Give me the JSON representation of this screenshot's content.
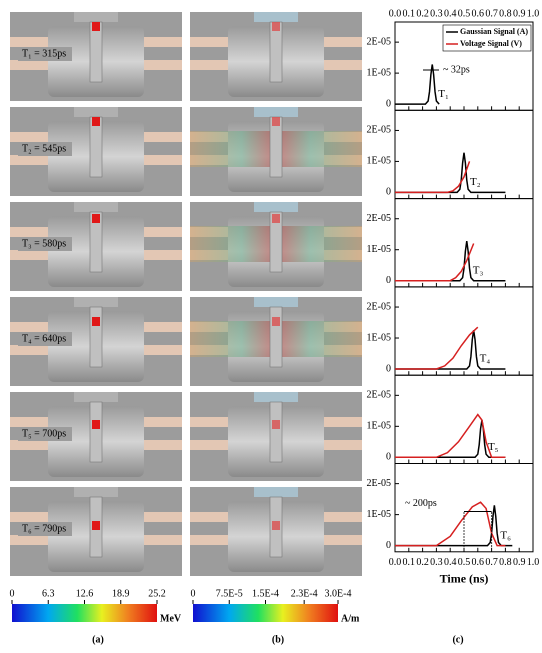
{
  "panel_a": {
    "label": "(a)",
    "rows": [
      "T₁ = 315ps",
      "T₂ = 545ps",
      "T₃ = 580ps",
      "T₄ = 640ps",
      "T₅ = 700ps",
      "T₆ = 790ps"
    ],
    "colorbar": {
      "lim": [
        0,
        25.2
      ],
      "ticks": [
        0,
        6.3,
        12.6,
        18.9,
        25.2
      ],
      "unit": "MeV"
    }
  },
  "panel_b": {
    "label": "(b)",
    "colorbar": {
      "lim": [
        0,
        0.0003
      ],
      "ticks": [
        0,
        {
          "value": 7.5e-05,
          "label": "7.5E-5"
        },
        {
          "value": 0.00015,
          "label": "1.5E-4"
        },
        {
          "value": 0.00023,
          "label": "2.3E-4"
        },
        {
          "value": 0.0003,
          "label": "3.0E-4"
        }
      ],
      "unit": "A/m"
    }
  },
  "panel_c": {
    "label": "(c)"
  },
  "chart_data": [
    {
      "type": "line",
      "xlim": [
        0,
        1
      ],
      "xticks": [
        {
          "value": 0,
          "label": "0.0"
        },
        0.1,
        0.2,
        0.3,
        0.4,
        0.5,
        0.6,
        0.7,
        0.8,
        0.9,
        {
          "value": 1,
          "label": "1.0"
        }
      ],
      "ylim": [
        -2e-06,
        2.65e-05
      ],
      "yticks": [
        0,
        {
          "value": 1e-05,
          "label": "1E-05"
        },
        {
          "value": 2e-05,
          "label": "2E-05"
        }
      ],
      "annotations": [
        "T₁",
        "~ 32ps"
      ],
      "series": [
        {
          "name": "Gaussian Signal (A)",
          "color": "#000000",
          "x": [
            0,
            0.22,
            0.24,
            0.25,
            0.26,
            0.27,
            0.28,
            0.29,
            0.3,
            0.32
          ],
          "values": [
            0,
            0,
            1e-06,
            4e-06,
            9.5e-06,
            1.28e-05,
            9.5e-06,
            4e-06,
            1e-06,
            0
          ]
        },
        {
          "name": "Voltage Signal (V)",
          "color": "#d62020",
          "x": [],
          "values": []
        }
      ]
    },
    {
      "type": "line",
      "xlim": [
        0,
        1
      ],
      "xticks": [
        0,
        0.1,
        0.2,
        0.3,
        0.4,
        0.5,
        0.6,
        0.7,
        0.8,
        0.9,
        1
      ],
      "ylim": [
        -2e-06,
        2.65e-05
      ],
      "yticks": [
        0,
        {
          "value": 1e-05,
          "label": "1E-05"
        },
        {
          "value": 2e-05,
          "label": "2E-05"
        }
      ],
      "annotations": [
        "T₂"
      ],
      "series": [
        {
          "color": "#000000",
          "x": [
            0,
            0.45,
            0.47,
            0.48,
            0.49,
            0.5,
            0.51,
            0.52,
            0.53,
            0.55,
            0.8
          ],
          "values": [
            0,
            0,
            1e-06,
            4e-06,
            9.5e-06,
            1.28e-05,
            9.5e-06,
            4e-06,
            1e-06,
            0,
            0
          ]
        },
        {
          "color": "#d62020",
          "x": [
            0,
            0.38,
            0.42,
            0.46,
            0.5,
            0.54
          ],
          "values": [
            0,
            0,
            5e-07,
            2e-06,
            5e-06,
            1e-05
          ]
        }
      ]
    },
    {
      "type": "line",
      "xlim": [
        0,
        1
      ],
      "xticks": [
        0,
        0.1,
        0.2,
        0.3,
        0.4,
        0.5,
        0.6,
        0.7,
        0.8,
        0.9,
        1
      ],
      "ylim": [
        -2e-06,
        2.65e-05
      ],
      "yticks": [
        0,
        {
          "value": 1e-05,
          "label": "1E-05"
        },
        {
          "value": 2e-05,
          "label": "2E-05"
        }
      ],
      "annotations": [
        "T₃"
      ],
      "series": [
        {
          "color": "#000000",
          "x": [
            0,
            0.47,
            0.49,
            0.5,
            0.51,
            0.52,
            0.53,
            0.54,
            0.55,
            0.57,
            0.8
          ],
          "values": [
            0,
            0,
            1e-06,
            4e-06,
            9.5e-06,
            1.28e-05,
            9.5e-06,
            4e-06,
            1e-06,
            0,
            0
          ]
        },
        {
          "color": "#d62020",
          "x": [
            0,
            0.4,
            0.44,
            0.48,
            0.52,
            0.57
          ],
          "values": [
            0,
            0,
            1e-06,
            3e-06,
            6.5e-06,
            1.2e-05
          ]
        }
      ]
    },
    {
      "type": "line",
      "xlim": [
        0,
        1
      ],
      "xticks": [
        0,
        0.1,
        0.2,
        0.3,
        0.4,
        0.5,
        0.6,
        0.7,
        0.8,
        0.9,
        1
      ],
      "ylim": [
        -2e-06,
        2.65e-05
      ],
      "yticks": [
        0,
        {
          "value": 1e-05,
          "label": "1E-05"
        },
        {
          "value": 2e-05,
          "label": "2E-05"
        }
      ],
      "annotations": [
        "T₄"
      ],
      "series": [
        {
          "color": "#000000",
          "x": [
            0,
            0.52,
            0.54,
            0.55,
            0.56,
            0.57,
            0.58,
            0.59,
            0.6,
            0.62,
            0.8
          ],
          "values": [
            0,
            0,
            1e-06,
            4e-06,
            9.5e-06,
            1.25e-05,
            9.5e-06,
            4e-06,
            1e-06,
            0,
            0
          ]
        },
        {
          "color": "#d62020",
          "x": [
            0,
            0.3,
            0.36,
            0.42,
            0.48,
            0.54,
            0.6
          ],
          "values": [
            0,
            0,
            1e-06,
            3.5e-06,
            7.5e-06,
            1.1e-05,
            1.35e-05
          ]
        }
      ]
    },
    {
      "type": "line",
      "xlim": [
        0,
        1
      ],
      "xticks": [
        0,
        0.1,
        0.2,
        0.3,
        0.4,
        0.5,
        0.6,
        0.7,
        0.8,
        0.9,
        1
      ],
      "ylim": [
        -2e-06,
        2.65e-05
      ],
      "yticks": [
        0,
        {
          "value": 1e-05,
          "label": "1E-05"
        },
        {
          "value": 2e-05,
          "label": "2E-05"
        }
      ],
      "annotations": [
        "T₅"
      ],
      "series": [
        {
          "color": "#000000",
          "x": [
            0,
            0.58,
            0.6,
            0.61,
            0.62,
            0.63,
            0.64,
            0.65,
            0.66,
            0.68,
            0.8
          ],
          "values": [
            0,
            0,
            1e-06,
            4e-06,
            9.2e-06,
            1.2e-05,
            9.2e-06,
            4e-06,
            1e-06,
            0,
            0
          ]
        },
        {
          "color": "#d62020",
          "x": [
            0,
            0.3,
            0.38,
            0.46,
            0.54,
            0.6,
            0.63,
            0.66,
            0.7,
            0.8
          ],
          "values": [
            0,
            0,
            1.5e-06,
            5e-06,
            1e-05,
            1.38e-05,
            1.2e-05,
            5e-06,
            0,
            0
          ]
        }
      ]
    },
    {
      "type": "line",
      "xlim": [
        0,
        1
      ],
      "xticks": [
        {
          "value": 0,
          "label": "0.0"
        },
        0.1,
        0.2,
        0.3,
        0.4,
        0.5,
        0.6,
        0.7,
        0.8,
        0.9,
        {
          "value": 1,
          "label": "1.0"
        }
      ],
      "xlabel": "Time (ns)",
      "ylim": [
        -2e-06,
        2.65e-05
      ],
      "yticks": [
        0,
        {
          "value": 1e-05,
          "label": "1E-05"
        },
        {
          "value": 2e-05,
          "label": "2E-05"
        }
      ],
      "annotations": [
        "T₆",
        "~ 200ps"
      ],
      "series": [
        {
          "color": "#000000",
          "x": [
            0,
            0.67,
            0.69,
            0.7,
            0.71,
            0.72,
            0.73,
            0.74,
            0.75,
            0.77,
            0.85
          ],
          "values": [
            0,
            0,
            1e-06,
            4e-06,
            9.5e-06,
            1.3e-05,
            9.5e-06,
            4e-06,
            1e-06,
            0,
            0
          ]
        },
        {
          "color": "#d62020",
          "x": [
            0,
            0.3,
            0.4,
            0.48,
            0.56,
            0.62,
            0.66,
            0.7,
            0.74,
            0.8
          ],
          "values": [
            0,
            0,
            3e-06,
            8e-06,
            1.25e-05,
            1.4e-05,
            1.2e-05,
            4e-06,
            0,
            0
          ]
        }
      ]
    }
  ]
}
